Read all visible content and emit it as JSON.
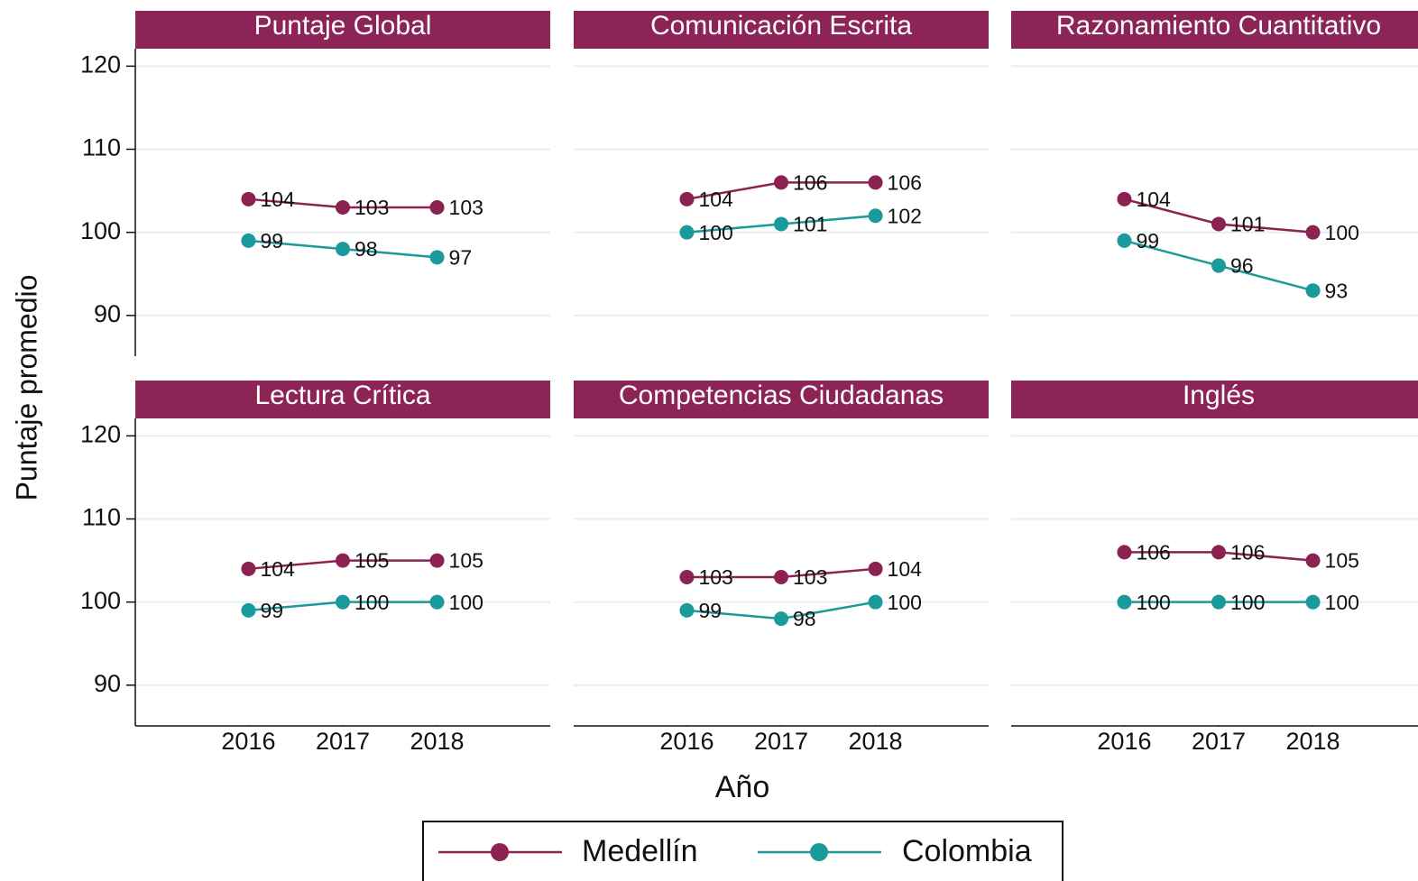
{
  "figure": {
    "x_label": "Año",
    "y_label": "Puntaje promedio"
  },
  "chart_data": [
    {
      "type": "line",
      "title": "Puntaje Global",
      "x": [
        2016,
        2017,
        2018
      ],
      "xlim": [
        2014.8,
        2019.2
      ],
      "ylim": [
        85.1,
        122.1
      ],
      "yticks": [
        90,
        100,
        110,
        120
      ],
      "grid": true,
      "series": [
        {
          "name": "Medellín",
          "color": "#8b2252",
          "values": [
            104,
            103,
            103
          ]
        },
        {
          "name": "Colombia",
          "color": "#1a9a9a",
          "values": [
            99,
            98,
            97
          ]
        }
      ]
    },
    {
      "type": "line",
      "title": "Comunicación Escrita",
      "x": [
        2016,
        2017,
        2018
      ],
      "xlim": [
        2014.8,
        2019.2
      ],
      "ylim": [
        85.1,
        122.1
      ],
      "yticks": [
        90,
        100,
        110,
        120
      ],
      "grid": true,
      "series": [
        {
          "color": "#8b2252",
          "values": [
            104,
            106,
            106
          ]
        },
        {
          "color": "#1a9a9a",
          "values": [
            100,
            101,
            102
          ]
        }
      ]
    },
    {
      "type": "line",
      "title": "Razonamiento Cuantitativo",
      "x": [
        2016,
        2017,
        2018
      ],
      "xlim": [
        2014.8,
        2019.2
      ],
      "ylim": [
        85.1,
        122.1
      ],
      "yticks": [
        90,
        100,
        110,
        120
      ],
      "grid": true,
      "series": [
        {
          "color": "#8b2252",
          "values": [
            104,
            101,
            100
          ]
        },
        {
          "color": "#1a9a9a",
          "values": [
            99,
            96,
            93
          ]
        }
      ]
    },
    {
      "type": "line",
      "title": "Lectura Crítica",
      "x": [
        2016,
        2017,
        2018
      ],
      "xlim": [
        2014.8,
        2019.2
      ],
      "xticks": [
        2016,
        2017,
        2018
      ],
      "ylim": [
        85.1,
        122.1
      ],
      "yticks": [
        90,
        100,
        110,
        120
      ],
      "grid": true,
      "series": [
        {
          "color": "#8b2252",
          "values": [
            104,
            105,
            105
          ]
        },
        {
          "color": "#1a9a9a",
          "values": [
            99,
            100,
            100
          ]
        }
      ]
    },
    {
      "type": "line",
      "title": "Competencias Ciudadanas",
      "x": [
        2016,
        2017,
        2018
      ],
      "xlim": [
        2014.8,
        2019.2
      ],
      "xticks": [
        2016,
        2017,
        2018
      ],
      "ylim": [
        85.1,
        122.1
      ],
      "yticks": [
        90,
        100,
        110,
        120
      ],
      "grid": true,
      "series": [
        {
          "color": "#8b2252",
          "values": [
            103,
            103,
            104
          ]
        },
        {
          "color": "#1a9a9a",
          "values": [
            99,
            98,
            100
          ]
        }
      ]
    },
    {
      "type": "line",
      "title": "Inglés",
      "x": [
        2016,
        2017,
        2018
      ],
      "xlim": [
        2014.8,
        2019.2
      ],
      "xticks": [
        2016,
        2017,
        2018
      ],
      "ylim": [
        85.1,
        122.1
      ],
      "yticks": [
        90,
        100,
        110,
        120
      ],
      "grid": true,
      "series": [
        {
          "color": "#8b2252",
          "values": [
            106,
            106,
            105
          ]
        },
        {
          "color": "#1a9a9a",
          "values": [
            100,
            100,
            100
          ]
        }
      ]
    }
  ]
}
